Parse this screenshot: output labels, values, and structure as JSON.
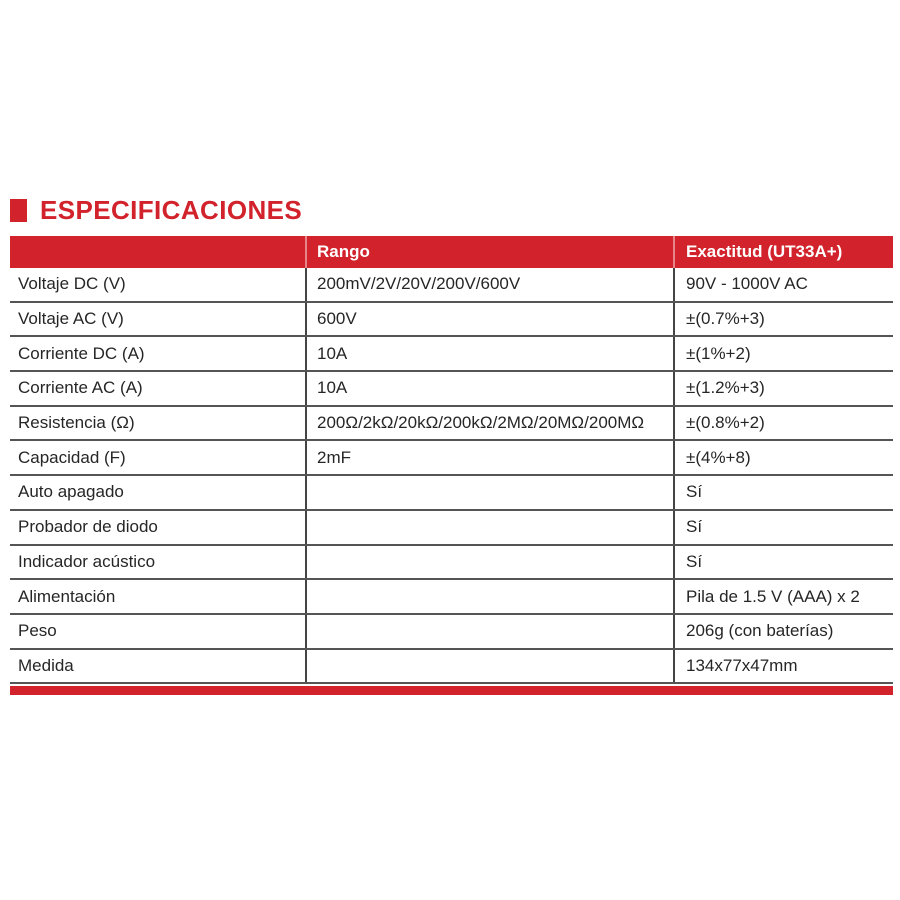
{
  "page": {
    "accent_color": "#d2222b",
    "line_color": "#555555",
    "title": "ESPECIFICACIONES"
  },
  "table": {
    "header": {
      "param_label": "",
      "rango_label": "Rango",
      "exactitud_label": "Exactitud (UT33A+)"
    },
    "rows": [
      {
        "param": "Voltaje DC (V)",
        "rango": "200mV/2V/20V/200V/600V",
        "exactitud": "90V - 1000V AC"
      },
      {
        "param": "Voltaje AC (V)",
        "rango": "600V",
        "exactitud": "±(0.7%+3)"
      },
      {
        "param": "Corriente DC (A)",
        "rango": "10A",
        "exactitud": "±(1%+2)"
      },
      {
        "param": "Corriente AC (A)",
        "rango": "10A",
        "exactitud": "±(1.2%+3)"
      },
      {
        "param": "Resistencia (Ω)",
        "rango": "200Ω/2kΩ/20kΩ/200kΩ/2MΩ/20MΩ/200MΩ",
        "exactitud": "±(0.8%+2)"
      },
      {
        "param": "Capacidad (F)",
        "rango": "2mF",
        "exactitud": "±(4%+8)"
      },
      {
        "param": "Auto apagado",
        "rango": "",
        "exactitud": "Sí"
      },
      {
        "param": "Probador de diodo",
        "rango": "",
        "exactitud": "Sí"
      },
      {
        "param": "Indicador acústico",
        "rango": "",
        "exactitud": "Sí"
      },
      {
        "param": "Alimentación",
        "rango": "",
        "exactitud": "Pila de 1.5 V (AAA) x 2"
      },
      {
        "param": "Peso",
        "rango": "",
        "exactitud": "206g (con baterías)"
      },
      {
        "param": "Medida",
        "rango": "",
        "exactitud": "134x77x47mm"
      }
    ]
  }
}
